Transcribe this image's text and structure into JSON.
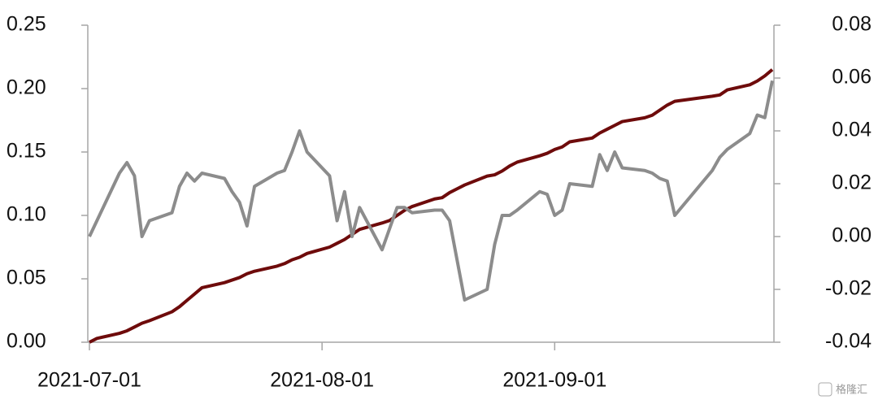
{
  "chart_data": {
    "type": "line",
    "x": [
      "2021-07-01",
      "2021-07-02",
      "2021-07-05",
      "2021-07-06",
      "2021-07-07",
      "2021-07-08",
      "2021-07-09",
      "2021-07-12",
      "2021-07-13",
      "2021-07-14",
      "2021-07-15",
      "2021-07-16",
      "2021-07-19",
      "2021-07-20",
      "2021-07-21",
      "2021-07-22",
      "2021-07-23",
      "2021-07-26",
      "2021-07-27",
      "2021-07-28",
      "2021-07-29",
      "2021-07-30",
      "2021-08-02",
      "2021-08-03",
      "2021-08-04",
      "2021-08-05",
      "2021-08-06",
      "2021-08-09",
      "2021-08-10",
      "2021-08-11",
      "2021-08-12",
      "2021-08-13",
      "2021-08-16",
      "2021-08-17",
      "2021-08-18",
      "2021-08-19",
      "2021-08-20",
      "2021-08-23",
      "2021-08-24",
      "2021-08-25",
      "2021-08-26",
      "2021-08-27",
      "2021-08-30",
      "2021-08-31",
      "2021-09-01",
      "2021-09-02",
      "2021-09-03",
      "2021-09-06",
      "2021-09-07",
      "2021-09-08",
      "2021-09-09",
      "2021-09-10",
      "2021-09-13",
      "2021-09-14",
      "2021-09-15",
      "2021-09-16",
      "2021-09-17",
      "2021-09-22",
      "2021-09-23",
      "2021-09-24",
      "2021-09-27",
      "2021-09-28",
      "2021-09-29",
      "2021-09-30"
    ],
    "series": [
      {
        "color": "#6e0b0b",
        "values": [
          0.0,
          0.003,
          0.007,
          0.009,
          0.012,
          0.015,
          0.017,
          0.024,
          0.028,
          0.033,
          0.038,
          0.043,
          0.047,
          0.049,
          0.051,
          0.054,
          0.056,
          0.06,
          0.062,
          0.065,
          0.067,
          0.07,
          0.075,
          0.078,
          0.081,
          0.085,
          0.089,
          0.094,
          0.096,
          0.1,
          0.104,
          0.107,
          0.113,
          0.114,
          0.118,
          0.121,
          0.124,
          0.131,
          0.132,
          0.135,
          0.139,
          0.142,
          0.147,
          0.149,
          0.152,
          0.154,
          0.158,
          0.161,
          0.165,
          0.168,
          0.171,
          0.174,
          0.177,
          0.179,
          0.183,
          0.187,
          0.19,
          0.194,
          0.195,
          0.199,
          0.203,
          0.206,
          0.21,
          0.215
        ]
      },
      {
        "color": "#8c8c8c",
        "axis": "y2",
        "values": [
          0.0,
          0.006,
          0.024,
          0.028,
          0.023,
          0.0,
          0.006,
          0.009,
          0.019,
          0.024,
          0.021,
          0.024,
          0.022,
          0.017,
          0.013,
          0.004,
          0.019,
          0.024,
          0.025,
          0.032,
          0.04,
          0.032,
          0.023,
          0.006,
          0.017,
          0.0,
          0.011,
          -0.005,
          0.003,
          0.011,
          0.011,
          0.009,
          0.01,
          0.01,
          0.006,
          -0.009,
          -0.024,
          -0.02,
          -0.003,
          0.008,
          0.008,
          0.01,
          0.017,
          0.016,
          0.008,
          0.01,
          0.02,
          0.019,
          0.031,
          0.025,
          0.032,
          0.026,
          0.025,
          0.024,
          0.022,
          0.021,
          0.008,
          0.025,
          0.03,
          0.033,
          0.039,
          0.046,
          0.045,
          0.059
        ]
      }
    ],
    "xlim": [
      "2021-07-01",
      "2021-09-30"
    ],
    "xticks": [
      "2021-07-01",
      "2021-08-01",
      "2021-09-01"
    ],
    "ylim": [
      0,
      0.25
    ],
    "yticks": [
      {
        "value": 0,
        "label": "0.00"
      },
      {
        "value": 0.05,
        "label": "0.05"
      },
      {
        "value": 0.1,
        "label": "0.10"
      },
      {
        "value": 0.15,
        "label": "0.15"
      },
      {
        "value": 0.2,
        "label": "0.20"
      },
      {
        "value": 0.25,
        "label": "0.25"
      }
    ],
    "y2lim": [
      -0.04,
      0.08
    ],
    "y2ticks": [
      {
        "value": -0.04,
        "label": "-0.04"
      },
      {
        "value": -0.02,
        "label": "-0.02"
      },
      {
        "value": 0,
        "label": "0.00"
      },
      {
        "value": 0.02,
        "label": "0.02"
      },
      {
        "value": 0.04,
        "label": "0.04"
      },
      {
        "value": 0.06,
        "label": "0.06"
      },
      {
        "value": 0.08,
        "label": "0.08"
      }
    ],
    "watermark": "格隆汇"
  }
}
